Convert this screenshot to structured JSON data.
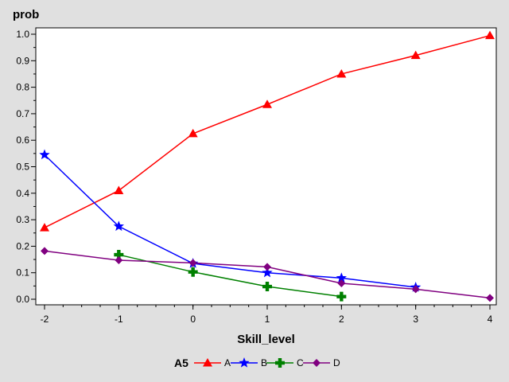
{
  "chart_data": {
    "type": "line",
    "ylabel": "prob",
    "xlabel": "Skill_level",
    "xlim": [
      -2,
      4
    ],
    "ylim": [
      0,
      1.0
    ],
    "xticks": [
      "-2",
      "-1",
      "0",
      "1",
      "2",
      "3",
      "4"
    ],
    "yticks": [
      "0.0",
      "0.1",
      "0.2",
      "0.3",
      "0.4",
      "0.5",
      "0.6",
      "0.7",
      "0.8",
      "0.9",
      "1.0"
    ],
    "grid": false,
    "legend_title": "A5",
    "legend_position": "bottom",
    "series": [
      {
        "name": "A",
        "color": "#ff0000",
        "marker": "triangle",
        "x": [
          -2,
          -1,
          0,
          1,
          2,
          3,
          4
        ],
        "y": [
          0.27,
          0.41,
          0.625,
          0.735,
          0.85,
          0.92,
          0.995
        ]
      },
      {
        "name": "B",
        "color": "#0000ff",
        "marker": "star",
        "x": [
          -2,
          -1,
          0,
          1,
          2,
          3
        ],
        "y": [
          0.545,
          0.275,
          0.135,
          0.1,
          0.08,
          0.045
        ]
      },
      {
        "name": "C",
        "color": "#008000",
        "marker": "plus",
        "x": [
          -1,
          0,
          1,
          2
        ],
        "y": [
          0.168,
          0.103,
          0.048,
          0.01
        ]
      },
      {
        "name": "D",
        "color": "#800080",
        "marker": "diamond",
        "x": [
          -2,
          -1,
          0,
          1,
          2,
          3,
          4
        ],
        "y": [
          0.182,
          0.147,
          0.137,
          0.122,
          0.06,
          0.038,
          0.005
        ]
      }
    ]
  }
}
